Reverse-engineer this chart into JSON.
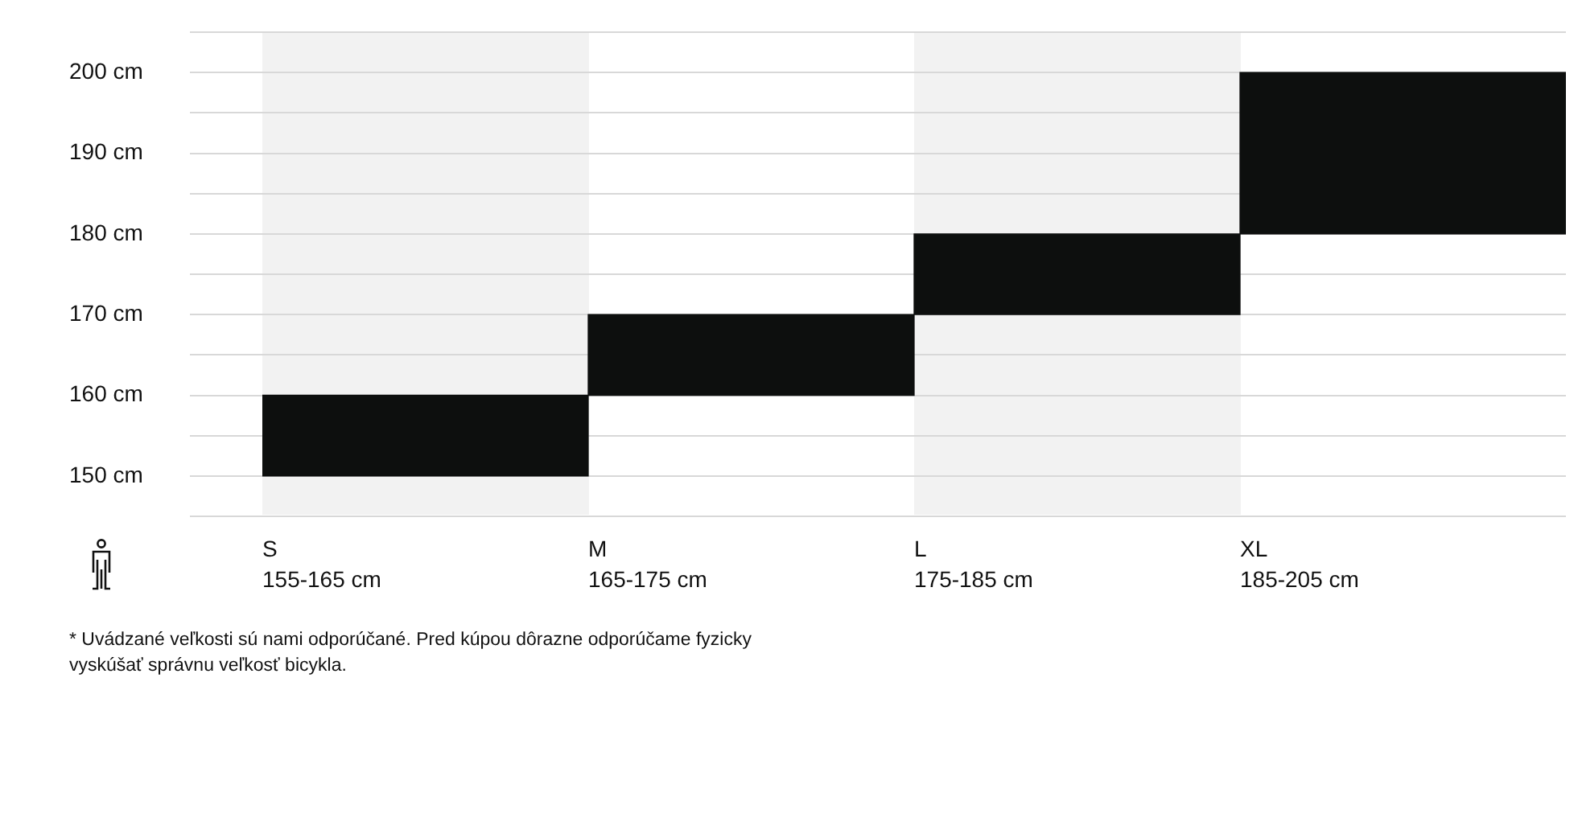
{
  "chart_data": {
    "type": "bar",
    "categories": [
      "S\n155-165 cm",
      "M\n165-175 cm",
      "L\n175-185 cm",
      "XL\n185-205 cm"
    ],
    "base": [
      150,
      160,
      170,
      180
    ],
    "values": [
      10,
      10,
      10,
      20
    ],
    "color": "#0d0f0e",
    "ylim": [
      145,
      205
    ],
    "yticks": [
      {
        "value": 145,
        "label": null
      },
      {
        "value": 150,
        "label": "150 cm"
      },
      {
        "value": 155,
        "label": null
      },
      {
        "value": 160,
        "label": "160 cm"
      },
      {
        "value": 165,
        "label": null
      },
      {
        "value": 170,
        "label": "170 cm"
      },
      {
        "value": 175,
        "label": null
      },
      {
        "value": 180,
        "label": "180 cm"
      },
      {
        "value": 185,
        "label": null
      },
      {
        "value": 190,
        "label": "190 cm"
      },
      {
        "value": 195,
        "label": null
      },
      {
        "value": 200,
        "label": "200 cm"
      },
      {
        "value": 205,
        "label": null
      }
    ],
    "grid": "y",
    "legend": false,
    "annotations": [
      "* Uvádzané veľkosti sú nami odporúčané. Pred kúpou dôrazne odporúčame fyzicky vyskúšať správnu veľkosť bicykla."
    ]
  }
}
